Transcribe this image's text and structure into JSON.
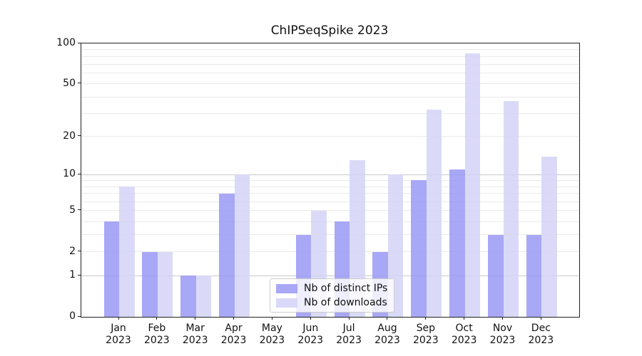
{
  "title": "ChIPSeqSpike 2023",
  "chart_data": {
    "type": "bar",
    "title": "ChIPSeqSpike 2023",
    "scale": "log1p",
    "xlabel": "",
    "ylabel": "",
    "ylim": [
      0,
      100
    ],
    "yticks": [
      0,
      1,
      2,
      5,
      10,
      20,
      50,
      100
    ],
    "minor_gridlines": [
      2,
      3,
      4,
      5,
      6,
      7,
      8,
      9,
      20,
      30,
      40,
      50,
      60,
      70,
      80,
      90
    ],
    "major_gridlines": [
      1,
      10
    ],
    "grid": true,
    "legend_position": "lower center",
    "categories": [
      "Jan",
      "Feb",
      "Mar",
      "Apr",
      "May",
      "Jun",
      "Jul",
      "Aug",
      "Sep",
      "Oct",
      "Nov",
      "Dec"
    ],
    "year_label": "2023",
    "series": [
      {
        "name": "Nb of distinct IPs",
        "color": "#9999f4",
        "values": [
          4,
          2,
          1,
          7,
          0,
          3,
          4,
          2,
          9,
          11,
          3,
          3
        ]
      },
      {
        "name": "Nb of downloads",
        "color": "#d3d3f7",
        "values": [
          8,
          2,
          1,
          10,
          0,
          5,
          13,
          10,
          32,
          84,
          37,
          14
        ]
      }
    ]
  },
  "colors": {
    "background": "#ffffff",
    "axis": "#222222",
    "text": "#111111",
    "major_grid": "#c9c9c9",
    "minor_grid": "#eaeaea",
    "bar_ips": "#9999f4",
    "bar_downloads": "#d3d3f7",
    "legend_border": "#cccccc"
  }
}
